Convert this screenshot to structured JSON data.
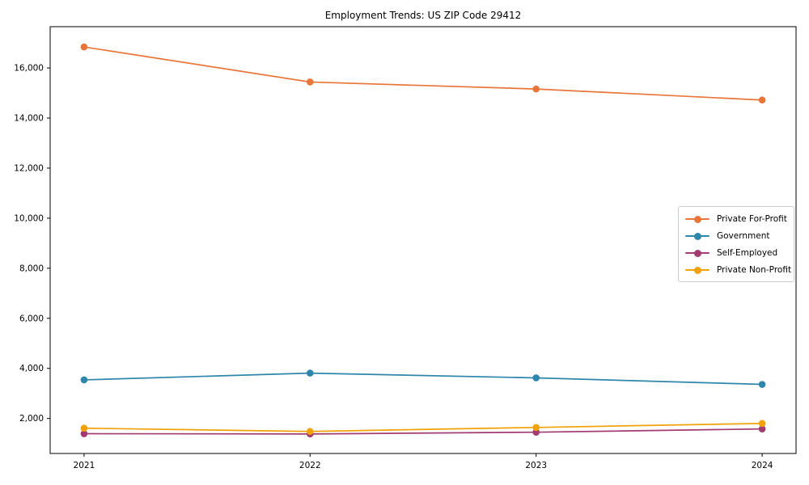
{
  "chart_data": {
    "type": "line",
    "title": "Employment Trends: US ZIP Code 29412",
    "xlabel": "",
    "ylabel": "",
    "x": [
      2021,
      2022,
      2023,
      2024
    ],
    "series": [
      {
        "name": "Private For-Profit",
        "color": "#E8763A",
        "values": [
          16840,
          15440,
          15160,
          14720
        ]
      },
      {
        "name": "Government",
        "color": "#2E86AB",
        "values": [
          3540,
          3810,
          3620,
          3360
        ]
      },
      {
        "name": "Self-Employed",
        "color": "#A23B72",
        "values": [
          1390,
          1380,
          1450,
          1580
        ]
      },
      {
        "name": "Private Non-Profit",
        "color": "#F1A208",
        "values": [
          1610,
          1480,
          1640,
          1800
        ]
      }
    ],
    "xticks": {
      "values": [
        2021,
        2022,
        2023,
        2024
      ],
      "labels": [
        "2021",
        "2022",
        "2023",
        "2024"
      ]
    },
    "yticks": {
      "values": [
        2000,
        4000,
        6000,
        8000,
        10000,
        12000,
        14000,
        16000
      ],
      "labels": [
        "2,000",
        "4,000",
        "6,000",
        "8,000",
        "10,000",
        "12,000",
        "14,000",
        "16,000"
      ]
    },
    "xlim": [
      2020.85,
      2024.15
    ],
    "ylim": [
      600,
      17650
    ],
    "grid": false,
    "legend_position": "center right",
    "marker": "circle",
    "line_width": 1.7,
    "marker_radius": 4.3,
    "axis_color": "#000000"
  }
}
